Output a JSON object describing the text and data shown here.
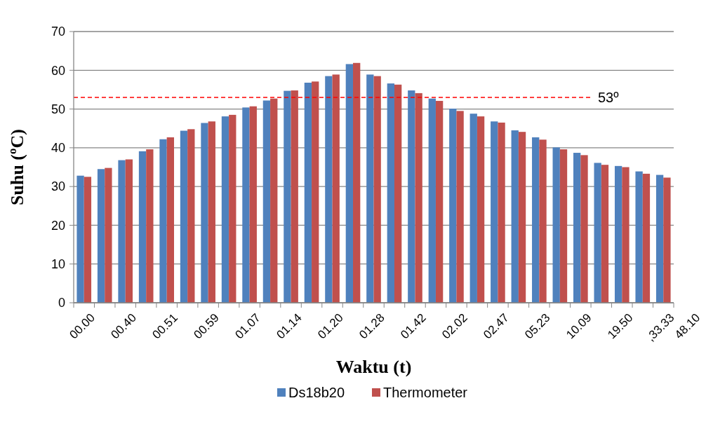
{
  "chart_data": {
    "type": "bar",
    "xlabel": "Waktu (t)",
    "ylabel": "Suhu (ºC)",
    "categories": [
      "00.00",
      null,
      "00.40",
      null,
      "00.51",
      null,
      "00.59",
      null,
      "01.07",
      null,
      "01.14",
      null,
      "01.20",
      null,
      "01.28",
      null,
      "01.42",
      null,
      "02.02",
      null,
      "02.47",
      null,
      "05.23",
      null,
      "10.09",
      null,
      "19.50",
      null,
      ",33.33"
    ],
    "series": [
      {
        "name": "Ds18b20",
        "color": "#4f81bd",
        "values": [
          32.8,
          34.5,
          36.8,
          39.1,
          42.2,
          44.4,
          46.4,
          48.1,
          50.4,
          52.2,
          54.7,
          56.8,
          58.5,
          61.6,
          58.9,
          56.6,
          54.8,
          52.7,
          50.1,
          48.8,
          46.8,
          44.5,
          42.7,
          40.1,
          38.7,
          36.1,
          35.3,
          33.9,
          33.0
        ]
      },
      {
        "name": "Thermometer",
        "color": "#c0504d",
        "values": [
          32.5,
          34.8,
          37.0,
          39.6,
          42.7,
          44.8,
          46.8,
          48.5,
          50.7,
          52.7,
          54.8,
          57.1,
          58.9,
          61.9,
          58.5,
          56.3,
          54.1,
          52.1,
          49.5,
          48.1,
          46.5,
          44.1,
          42.1,
          39.6,
          38.1,
          35.6,
          35.0,
          33.3,
          32.3
        ]
      }
    ],
    "ylim": [
      0,
      70
    ],
    "yticks": [
      0,
      10,
      20,
      30,
      40,
      50,
      60,
      70
    ],
    "grid": "y",
    "legend": "bottom",
    "ref_lines": [
      {
        "axis": "y",
        "value": 53,
        "label": "53º",
        "color": "#ff0000",
        "line_style": "dashed"
      }
    ],
    "annotations": [
      "48.10"
    ]
  }
}
